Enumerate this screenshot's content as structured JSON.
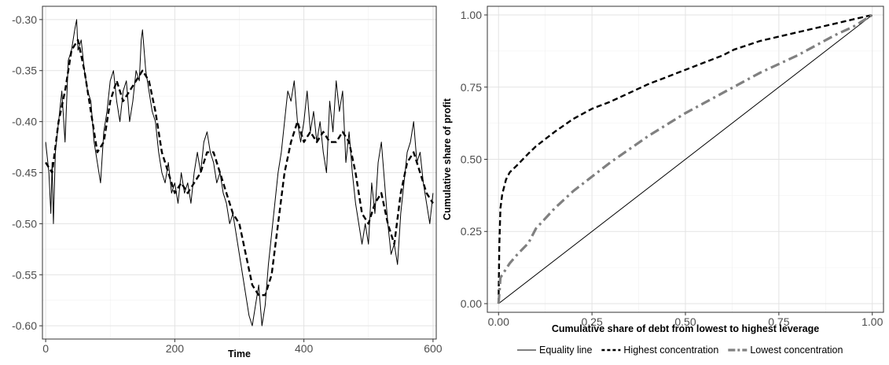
{
  "chart_data": [
    {
      "type": "line",
      "title": "",
      "xlabel": "Time",
      "ylabel": "",
      "xlim": [
        -5,
        605
      ],
      "ylim": [
        -0.613,
        -0.287
      ],
      "x_ticks": [
        0,
        200,
        400,
        600
      ],
      "x_tick_labels": [
        "0",
        "200",
        "400",
        "600"
      ],
      "y_ticks": [
        -0.3,
        -0.35,
        -0.4,
        -0.45,
        -0.5,
        -0.55,
        -0.6
      ],
      "y_tick_labels": [
        "-0.30",
        "-0.35",
        "-0.40",
        "-0.45",
        "-0.50",
        "-0.55",
        "-0.60"
      ],
      "grid": true,
      "legend": "none",
      "series": [
        {
          "style": "solid",
          "color": "#000000",
          "x": [
            0,
            5,
            8,
            10,
            12,
            15,
            20,
            25,
            30,
            35,
            40,
            45,
            48,
            50,
            55,
            60,
            65,
            70,
            75,
            80,
            85,
            90,
            95,
            100,
            105,
            110,
            115,
            120,
            125,
            130,
            135,
            140,
            145,
            148,
            150,
            155,
            160,
            165,
            170,
            175,
            180,
            185,
            190,
            195,
            200,
            205,
            210,
            215,
            220,
            225,
            230,
            235,
            240,
            245,
            250,
            255,
            260,
            265,
            270,
            275,
            280,
            285,
            290,
            295,
            300,
            305,
            310,
            315,
            320,
            325,
            330,
            335,
            340,
            345,
            350,
            355,
            360,
            365,
            370,
            375,
            380,
            385,
            390,
            395,
            400,
            405,
            410,
            415,
            420,
            425,
            430,
            435,
            440,
            445,
            450,
            455,
            460,
            465,
            470,
            475,
            480,
            485,
            490,
            495,
            500,
            505,
            510,
            515,
            520,
            525,
            530,
            535,
            540,
            545,
            550,
            555,
            560,
            565,
            570,
            575,
            580,
            585,
            590,
            595,
            600
          ],
          "y": [
            -0.42,
            -0.45,
            -0.49,
            -0.44,
            -0.5,
            -0.43,
            -0.4,
            -0.37,
            -0.42,
            -0.34,
            -0.33,
            -0.31,
            -0.3,
            -0.33,
            -0.32,
            -0.35,
            -0.37,
            -0.38,
            -0.42,
            -0.44,
            -0.46,
            -0.41,
            -0.39,
            -0.36,
            -0.35,
            -0.38,
            -0.4,
            -0.37,
            -0.36,
            -0.4,
            -0.38,
            -0.35,
            -0.36,
            -0.32,
            -0.31,
            -0.35,
            -0.37,
            -0.39,
            -0.4,
            -0.43,
            -0.45,
            -0.46,
            -0.44,
            -0.47,
            -0.46,
            -0.48,
            -0.45,
            -0.47,
            -0.46,
            -0.48,
            -0.45,
            -0.43,
            -0.45,
            -0.42,
            -0.41,
            -0.43,
            -0.44,
            -0.46,
            -0.45,
            -0.47,
            -0.48,
            -0.5,
            -0.49,
            -0.51,
            -0.53,
            -0.55,
            -0.57,
            -0.59,
            -0.6,
            -0.58,
            -0.56,
            -0.6,
            -0.58,
            -0.54,
            -0.51,
            -0.48,
            -0.45,
            -0.43,
            -0.4,
            -0.37,
            -0.38,
            -0.36,
            -0.4,
            -0.42,
            -0.4,
            -0.37,
            -0.41,
            -0.39,
            -0.42,
            -0.4,
            -0.43,
            -0.45,
            -0.38,
            -0.41,
            -0.36,
            -0.39,
            -0.37,
            -0.44,
            -0.41,
            -0.45,
            -0.48,
            -0.5,
            -0.52,
            -0.5,
            -0.52,
            -0.46,
            -0.49,
            -0.44,
            -0.42,
            -0.46,
            -0.5,
            -0.53,
            -0.52,
            -0.54,
            -0.49,
            -0.46,
            -0.43,
            -0.42,
            -0.4,
            -0.44,
            -0.43,
            -0.46,
            -0.48,
            -0.5,
            -0.47
          ]
        },
        {
          "style": "dashed",
          "color": "#000000",
          "x": [
            0,
            10,
            20,
            30,
            40,
            50,
            60,
            70,
            80,
            90,
            100,
            110,
            120,
            130,
            140,
            150,
            160,
            170,
            180,
            190,
            200,
            210,
            220,
            230,
            240,
            250,
            260,
            270,
            280,
            290,
            300,
            310,
            320,
            330,
            340,
            350,
            360,
            370,
            380,
            390,
            400,
            410,
            420,
            430,
            440,
            450,
            460,
            470,
            480,
            490,
            500,
            510,
            520,
            530,
            540,
            550,
            560,
            570,
            580,
            590,
            600
          ],
          "y": [
            -0.44,
            -0.45,
            -0.4,
            -0.37,
            -0.33,
            -0.32,
            -0.35,
            -0.39,
            -0.43,
            -0.42,
            -0.38,
            -0.36,
            -0.38,
            -0.37,
            -0.36,
            -0.35,
            -0.36,
            -0.39,
            -0.43,
            -0.45,
            -0.47,
            -0.46,
            -0.47,
            -0.46,
            -0.45,
            -0.43,
            -0.43,
            -0.45,
            -0.47,
            -0.49,
            -0.5,
            -0.53,
            -0.56,
            -0.57,
            -0.57,
            -0.55,
            -0.5,
            -0.45,
            -0.42,
            -0.4,
            -0.42,
            -0.41,
            -0.42,
            -0.41,
            -0.42,
            -0.42,
            -0.41,
            -0.42,
            -0.45,
            -0.49,
            -0.5,
            -0.48,
            -0.47,
            -0.5,
            -0.52,
            -0.47,
            -0.44,
            -0.43,
            -0.45,
            -0.47,
            -0.48
          ]
        }
      ]
    },
    {
      "type": "line",
      "title": "",
      "xlabel": "Cumulative share of debt from lowest to highest leverage",
      "ylabel": "Cumulative share of profit",
      "xlim": [
        -0.03,
        1.03
      ],
      "ylim": [
        -0.03,
        1.03
      ],
      "x_ticks": [
        0,
        0.25,
        0.5,
        0.75,
        1
      ],
      "x_tick_labels": [
        "0.00",
        "0.25",
        "0.50",
        "0.75",
        "1.00"
      ],
      "y_ticks": [
        0,
        0.25,
        0.5,
        0.75,
        1
      ],
      "y_tick_labels": [
        "0.00",
        "0.25",
        "0.50",
        "0.75",
        "1.00"
      ],
      "grid": true,
      "legend": "bottom",
      "series": [
        {
          "name": "Equality line",
          "style": "solid",
          "color": "#000000",
          "x": [
            0,
            1
          ],
          "y": [
            0,
            1
          ]
        },
        {
          "name": "Highest concentration",
          "style": "dashed",
          "color": "#000000",
          "x": [
            0,
            0.002,
            0.005,
            0.01,
            0.02,
            0.03,
            0.05,
            0.08,
            0.1,
            0.15,
            0.2,
            0.25,
            0.3,
            0.4,
            0.5,
            0.6,
            0.63,
            0.7,
            0.8,
            0.9,
            1.0
          ],
          "y": [
            0,
            0.2,
            0.33,
            0.38,
            0.43,
            0.455,
            0.48,
            0.52,
            0.545,
            0.595,
            0.64,
            0.675,
            0.7,
            0.76,
            0.81,
            0.86,
            0.88,
            0.91,
            0.94,
            0.97,
            1.0
          ]
        },
        {
          "name": "Lowest concentration",
          "style": "dashdot",
          "color": "#808080",
          "x": [
            0,
            0.003,
            0.005,
            0.01,
            0.02,
            0.03,
            0.05,
            0.08,
            0.1,
            0.15,
            0.2,
            0.25,
            0.3,
            0.4,
            0.5,
            0.6,
            0.7,
            0.8,
            0.9,
            0.95,
            1.0
          ],
          "y": [
            0,
            0.05,
            0.09,
            0.1,
            0.12,
            0.14,
            0.17,
            0.21,
            0.26,
            0.33,
            0.39,
            0.44,
            0.49,
            0.58,
            0.66,
            0.73,
            0.8,
            0.86,
            0.93,
            0.96,
            1.0
          ]
        }
      ]
    }
  ]
}
